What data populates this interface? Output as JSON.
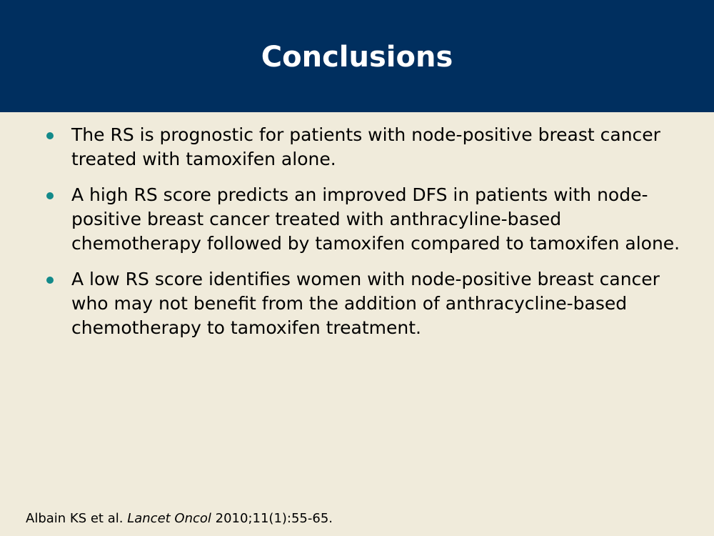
{
  "slide": {
    "title": "Conclusions",
    "bullets": [
      "The RS is prognostic for patients with node-positive breast cancer treated with tamoxifen alone.",
      "A high RS score predicts an improved DFS in patients with node-positive breast cancer treated with anthracyline-based chemotherapy followed by tamoxifen compared to tamoxifen alone.",
      "A low RS score identifies women with node-positive breast cancer who may not benefit from the addition of anthracycline-based chemotherapy to tamoxifen treatment."
    ],
    "citation": {
      "authors": "Albain KS et al.",
      "journal": "Lancet Oncol",
      "reference": "2010;11(1):55-65."
    }
  },
  "colors": {
    "header_bg": "#002F5F",
    "body_bg": "#F0EBDB",
    "bullet": "#138A8A",
    "title_text": "#FFFFFF"
  }
}
